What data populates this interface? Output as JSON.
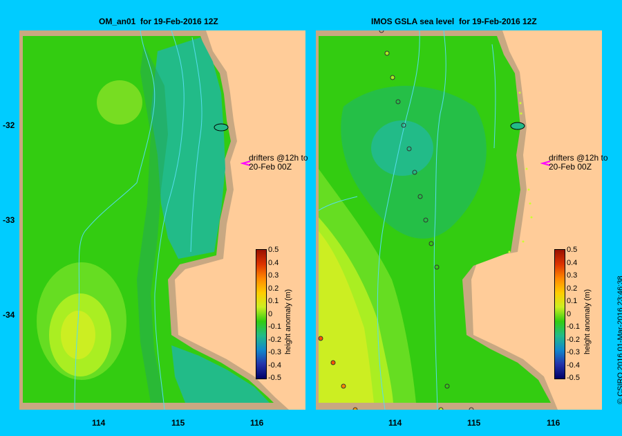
{
  "panels": [
    {
      "title": "OM_an01  for 19-Feb-2016 12Z"
    },
    {
      "title": "IMOS GSLA sea level  for 19-Feb-2016 12Z"
    }
  ],
  "y_axis_labels": [
    "-32",
    "-33",
    "-34"
  ],
  "x_axis_labels": [
    "114",
    "115",
    "116"
  ],
  "colorbar": {
    "title": "height anomaly (m)",
    "ticks": [
      "0.5",
      "0.4",
      "0.3",
      "0.2",
      "0.1",
      "0",
      "-0.1",
      "-0.2",
      "-0.3",
      "-0.4",
      "-0.5"
    ]
  },
  "drifters_note": {
    "line1": "drifters @12h to",
    "line2": "20-Feb 00Z"
  },
  "credit": "© CSIRO 2016   01-Mar-2016 23:46:38",
  "colors": {
    "background": "#00ccff",
    "land": "#ffcc99",
    "coast": "#c8a882",
    "field_green": "#33cc11",
    "field_teal": "#22bb88",
    "field_yellow": "#ccee22",
    "drifter_arrow": "#ff00ff"
  }
}
